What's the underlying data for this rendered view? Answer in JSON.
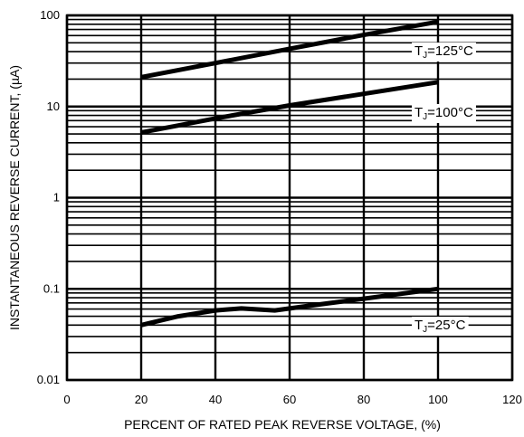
{
  "chart_data": {
    "type": "line",
    "title": "",
    "xlabel": "PERCENT OF RATED PEAK REVERSE VOLTAGE, (%)",
    "ylabel": "INSTANTANEOUS REVERSE CURRENT, (µA)",
    "xlim": [
      0,
      120
    ],
    "ylim": [
      0.01,
      100
    ],
    "yscale": "log",
    "grid": true,
    "x_ticks": [
      0,
      20,
      40,
      60,
      80,
      100,
      120
    ],
    "y_ticks": [
      0.01,
      0.1,
      1,
      10,
      100
    ],
    "x_tick_labels": [
      "0",
      "20",
      "40",
      "60",
      "80",
      "100",
      "120"
    ],
    "y_tick_labels": [
      "0.01",
      "0.1",
      "1",
      "10",
      "100"
    ],
    "series": [
      {
        "name": "TJ=125°C",
        "label_parts": {
          "t": "T",
          "sub": "J",
          "rest": "=125°C"
        },
        "x": [
          20,
          40,
          60,
          80,
          100
        ],
        "y": [
          21,
          30,
          43,
          61,
          85
        ]
      },
      {
        "name": "TJ=100°C",
        "label_parts": {
          "t": "T",
          "sub": "J",
          "rest": "=100°C"
        },
        "x": [
          20,
          40,
          60,
          80,
          100
        ],
        "y": [
          5.2,
          7.4,
          10.3,
          13.8,
          18.5
        ]
      },
      {
        "name": "TJ=25°C",
        "label_parts": {
          "t": "T",
          "sub": "J",
          "rest": "=25°C"
        },
        "x": [
          20,
          30,
          40,
          47,
          56,
          65,
          80,
          100
        ],
        "y": [
          0.04,
          0.05,
          0.058,
          0.061,
          0.058,
          0.065,
          0.078,
          0.1
        ]
      }
    ]
  }
}
